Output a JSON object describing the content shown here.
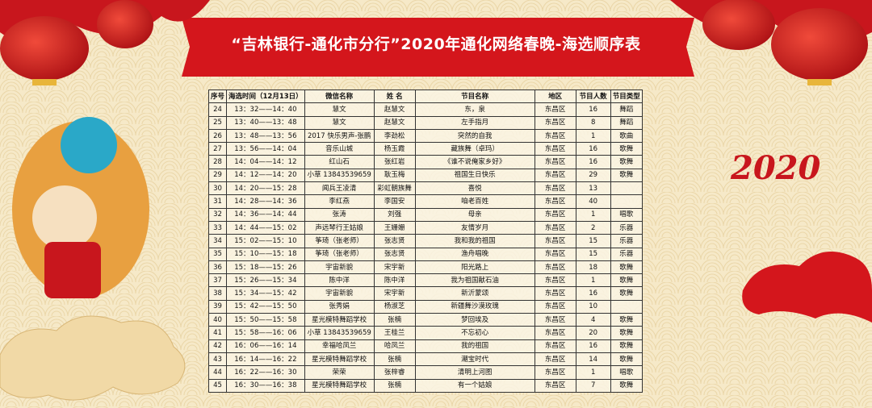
{
  "header": {
    "title": "“吉林银行-通化市分行”2020年通化网络春晚-海选顺序表",
    "decoration_text": "2020"
  },
  "table": {
    "columns": [
      "序号",
      "海选时间（12月13日）",
      "微信名称",
      "姓 名",
      "节目名称",
      "地区",
      "节目人数",
      "节目类型"
    ],
    "rows": [
      [
        "24",
        "13：32——14：40",
        "慧文",
        "赵慧文",
        "东，泉",
        "东昌区",
        "16",
        "舞蹈"
      ],
      [
        "25",
        "13：40——13：48",
        "慧文",
        "赵慧文",
        "左手指月",
        "东昌区",
        "8",
        "舞蹈"
      ],
      [
        "26",
        "13：48——13：56",
        "2017 快乐男声-张鹏",
        "李劲松",
        "突然的自我",
        "东昌区",
        "1",
        "歌曲"
      ],
      [
        "27",
        "13：56——14：04",
        "音乐山城",
        "杨玉霞",
        "藏族舞（卓玛）",
        "东昌区",
        "16",
        "歌舞"
      ],
      [
        "28",
        "14：04——14：12",
        "红山石",
        "张红岩",
        "《谁不说俺家乡好》",
        "东昌区",
        "16",
        "歌舞"
      ],
      [
        "29",
        "14：12——14：20",
        "小草 13843539659",
        "耿玉梅",
        "祖国生日快乐",
        "东昌区",
        "29",
        "歌舞"
      ],
      [
        "30",
        "14：20——15：28",
        "闻兵王凌清",
        "彩虹朝族舞",
        "喜悦",
        "东昌区",
        "13",
        null
      ],
      [
        "31",
        "14：28——14：36",
        "李红燕",
        "李国安",
        "咱老百姓",
        "东昌区",
        "40",
        null
      ],
      [
        "32",
        "14：36——14：44",
        "张涛",
        "刘强",
        "母亲",
        "东昌区",
        "1",
        "唱歌"
      ],
      [
        "33",
        "14：44——15：02",
        "声远琴行王姑娘",
        "王姗姗",
        "友情岁月",
        "东昌区",
        "2",
        "乐器"
      ],
      [
        "34",
        "15：02——15：10",
        "筝琦（张老师）",
        "张志贤",
        "我和我的祖国",
        "东昌区",
        "15",
        "乐器"
      ],
      [
        "35",
        "15：10——15：18",
        "筝琦（张老师）",
        "张志贤",
        "渔舟唱晚",
        "东昌区",
        "15",
        "乐器"
      ],
      [
        "36",
        "15：18——15：26",
        "宇宙新貌",
        "宋宇新",
        "阳光路上",
        "东昌区",
        "18",
        "歌舞"
      ],
      [
        "37",
        "15：26——15：34",
        "陈中洋",
        "陈中洋",
        "我为祖国献石油",
        "东昌区",
        "1",
        "歌舞"
      ],
      [
        "38",
        "15：34——15：42",
        "宇宙新貌",
        "宋宇新",
        "新沂蒙颂",
        "东昌区",
        "16",
        "歌舞"
      ],
      [
        "39",
        "15：42——15：50",
        "张秀娟",
        "杨淑芝",
        "新疆舞沙漠玫瑰",
        "东昌区",
        "10",
        null
      ],
      [
        "40",
        "15：50——15：58",
        "星光模特舞蹈学校",
        "张楠",
        "梦回埃及",
        "东昌区",
        "4",
        "歌舞"
      ],
      [
        "41",
        "15：58——16：06",
        "小草 13843539659",
        "王桂兰",
        "不忘初心",
        "东昌区",
        "20",
        "歌舞"
      ],
      [
        "42",
        "16：06——16：14",
        "幸福哈凤兰",
        "哈凤兰",
        "我的祖国",
        "东昌区",
        "16",
        "歌舞"
      ],
      [
        "43",
        "16：14——16：22",
        "星光模特舞蹈学校",
        "张楠",
        "潮宝时代",
        "东昌区",
        "14",
        "歌舞"
      ],
      [
        "44",
        "16：22——16：30",
        "荣荣",
        "张梓睿",
        "清明上河图",
        "东昌区",
        "1",
        "唱歌"
      ],
      [
        "45",
        "16：30——16：38",
        "星光模特舞蹈学校",
        "张楠",
        "有一个姑娘",
        "东昌区",
        "7",
        "歌舞"
      ]
    ]
  }
}
